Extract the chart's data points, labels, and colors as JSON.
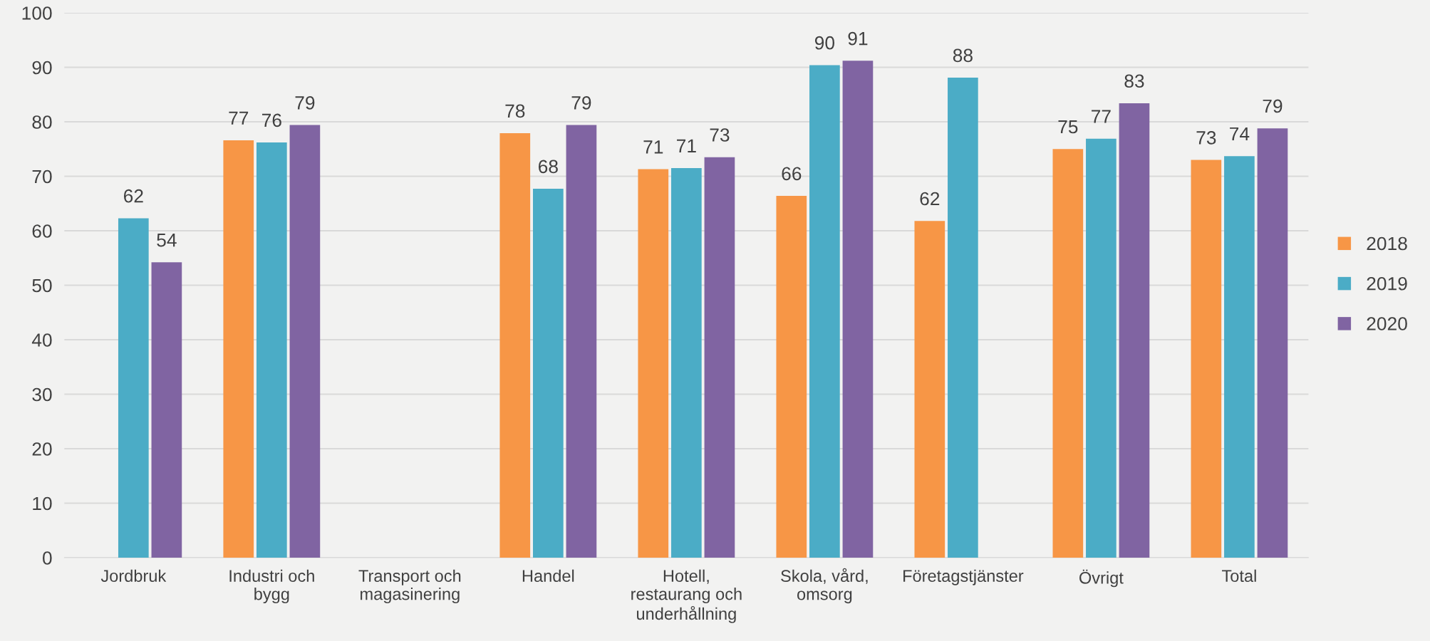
{
  "chart_data": {
    "type": "bar",
    "categories": [
      "Jordbruk",
      "Industri och\nbygg",
      "Transport och\nmagasinering",
      "Handel",
      "Hotell,\nrestaurang och\nunderhållning",
      "Skola, vård,\nomsorg",
      "Företagstjänster",
      "Övrigt",
      "Total"
    ],
    "series": [
      {
        "name": "2018",
        "color": "#f79646",
        "values": [
          null,
          76.6,
          null,
          77.9,
          71.3,
          66.4,
          61.8,
          75.0,
          73.0
        ],
        "value_labels": [
          null,
          "77",
          null,
          "78",
          "71",
          "66",
          "62",
          "75",
          "73"
        ]
      },
      {
        "name": "2019",
        "color": "#4bacc6",
        "values": [
          62.3,
          76.2,
          null,
          67.7,
          71.5,
          90.4,
          88.1,
          76.9,
          73.7
        ],
        "value_labels": [
          "62",
          "76",
          null,
          "68",
          "71",
          "90",
          "88",
          "77",
          "74"
        ]
      },
      {
        "name": "2020",
        "color": "#8064a2",
        "values": [
          54.2,
          79.4,
          null,
          79.4,
          73.5,
          91.2,
          null,
          83.4,
          78.8
        ],
        "value_labels": [
          "54",
          "79",
          null,
          "79",
          "73",
          "91",
          null,
          "83",
          "79"
        ]
      }
    ],
    "ylim": [
      0,
      100
    ],
    "yticks": [
      0,
      10,
      20,
      30,
      40,
      50,
      60,
      70,
      80,
      90,
      100
    ],
    "grid": "y",
    "legend": "right"
  }
}
